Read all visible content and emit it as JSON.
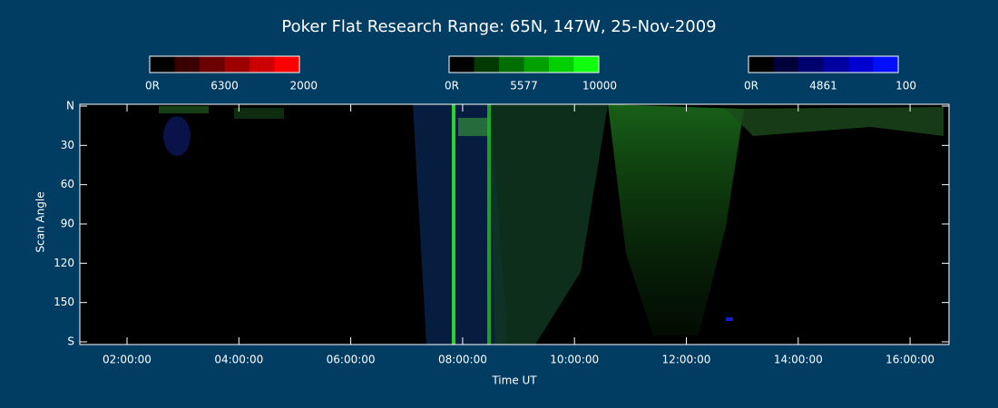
{
  "title": "Poker Flat Research Range: 65N, 147W, 25-Nov-2009",
  "colorbars": [
    {
      "low": "0R",
      "wavelength": "6300",
      "high": "2000",
      "colors": [
        "#000000",
        "#3a0000",
        "#6a0000",
        "#9c0000",
        "#cc0000",
        "#ff0000"
      ]
    },
    {
      "low": "0R",
      "wavelength": "5577",
      "high": "10000",
      "colors": [
        "#000000",
        "#003a00",
        "#006e00",
        "#00a000",
        "#00d000",
        "#10ff10"
      ]
    },
    {
      "low": "0R",
      "wavelength": "4861",
      "high": "100",
      "colors": [
        "#000000",
        "#00003a",
        "#00006e",
        "#0000a0",
        "#0000d0",
        "#0010ff"
      ]
    }
  ],
  "plot": {
    "y_label": "Scan Angle",
    "y_ticks": [
      "N",
      "30",
      "60",
      "90",
      "120",
      "150",
      "S"
    ],
    "x_label": "Time UT",
    "x_ticks": [
      "02:00:00",
      "04:00:00",
      "06:00:00",
      "08:00:00",
      "10:00:00",
      "12:00:00",
      "14:00:00",
      "16:00:00"
    ]
  }
}
